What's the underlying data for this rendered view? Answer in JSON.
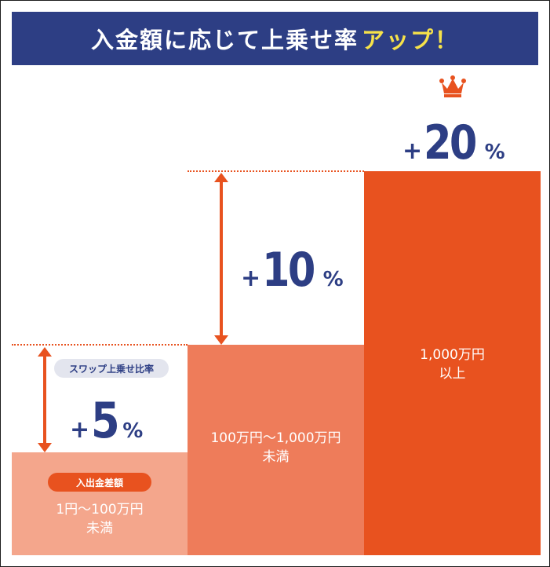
{
  "banner": {
    "title": "入金額に応じて上乗せ率",
    "accent": "アップ！"
  },
  "tiers": [
    {
      "amount_line1": "1円～100万円",
      "amount_line2": "未満",
      "bonus_sign": "+",
      "bonus_value": "5",
      "bonus_unit": "%"
    },
    {
      "amount_line1": "100万円～1,000万円",
      "amount_line2": "未満",
      "bonus_sign": "+",
      "bonus_value": "10",
      "bonus_unit": "%"
    },
    {
      "amount_line1": "1,000万円",
      "amount_line2": "以上",
      "bonus_sign": "+",
      "bonus_value": "20",
      "bonus_unit": "%"
    }
  ],
  "labels": {
    "ratio_pill": "スワップ上乗せ比率",
    "amount_pill": "入出金差額"
  },
  "icons": {
    "crown": "crown-icon",
    "arrow": "double-arrow-icon"
  },
  "colors": {
    "navy": "#2d3e84",
    "orange": "#e8521f",
    "mid_orange": "#ee7c5a",
    "light_orange": "#f4a68c",
    "yellow": "#f6e24a"
  }
}
